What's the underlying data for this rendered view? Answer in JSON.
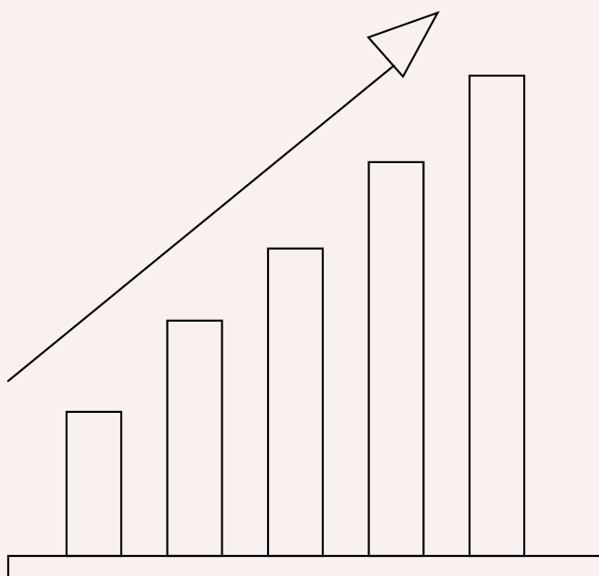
{
  "colors": {
    "background": "#f9f1ef",
    "stroke": "#000000",
    "fill": "none"
  },
  "illustration": {
    "subject": "growth-bar-chart-icon",
    "bar_count": 5,
    "relative_levels": [
      0.3,
      0.49,
      0.64,
      0.82,
      1.0
    ],
    "trend": "rising-arrow-icon"
  }
}
